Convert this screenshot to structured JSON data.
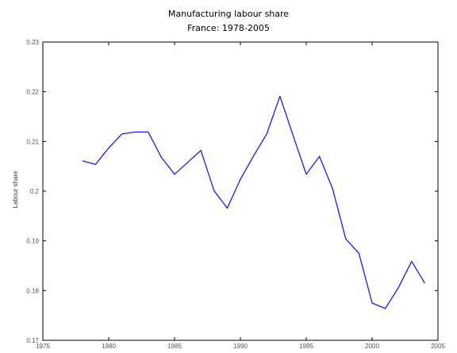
{
  "chart_data": {
    "type": "line",
    "title": "Manufacturing labour share",
    "subtitle": "France: 1978-2005",
    "xlabel": "",
    "ylabel": "Labour share",
    "xlim": [
      1975,
      2005
    ],
    "ylim": [
      0.17,
      0.23
    ],
    "xticks": [
      "1975",
      "1980",
      "1985",
      "1990",
      "1995",
      "2000",
      "2005"
    ],
    "yticks": [
      "0.17",
      "0.18",
      "0.19",
      "0.2",
      "0.21",
      "0.22",
      "0.23"
    ],
    "grid": false,
    "series": [
      {
        "color": "#1a1aff",
        "x": [
          1978,
          1979,
          1980,
          1981,
          1982,
          1983,
          1984,
          1985,
          1986,
          1987,
          1988,
          1989,
          1990,
          1991,
          1992,
          1993,
          1994,
          1995,
          1996,
          1997,
          1998,
          1999,
          2000,
          2001,
          2002,
          2003,
          2004
        ],
        "y": [
          0.2061,
          0.2054,
          0.2087,
          0.2115,
          0.2119,
          0.2119,
          0.2068,
          0.2034,
          0.2058,
          0.2082,
          0.2001,
          0.1966,
          0.2024,
          0.2071,
          0.2115,
          0.2191,
          0.2112,
          0.2034,
          0.207,
          0.2005,
          0.1904,
          0.1875,
          0.1775,
          0.1764,
          0.1806,
          0.1859,
          0.1815
        ]
      }
    ]
  }
}
